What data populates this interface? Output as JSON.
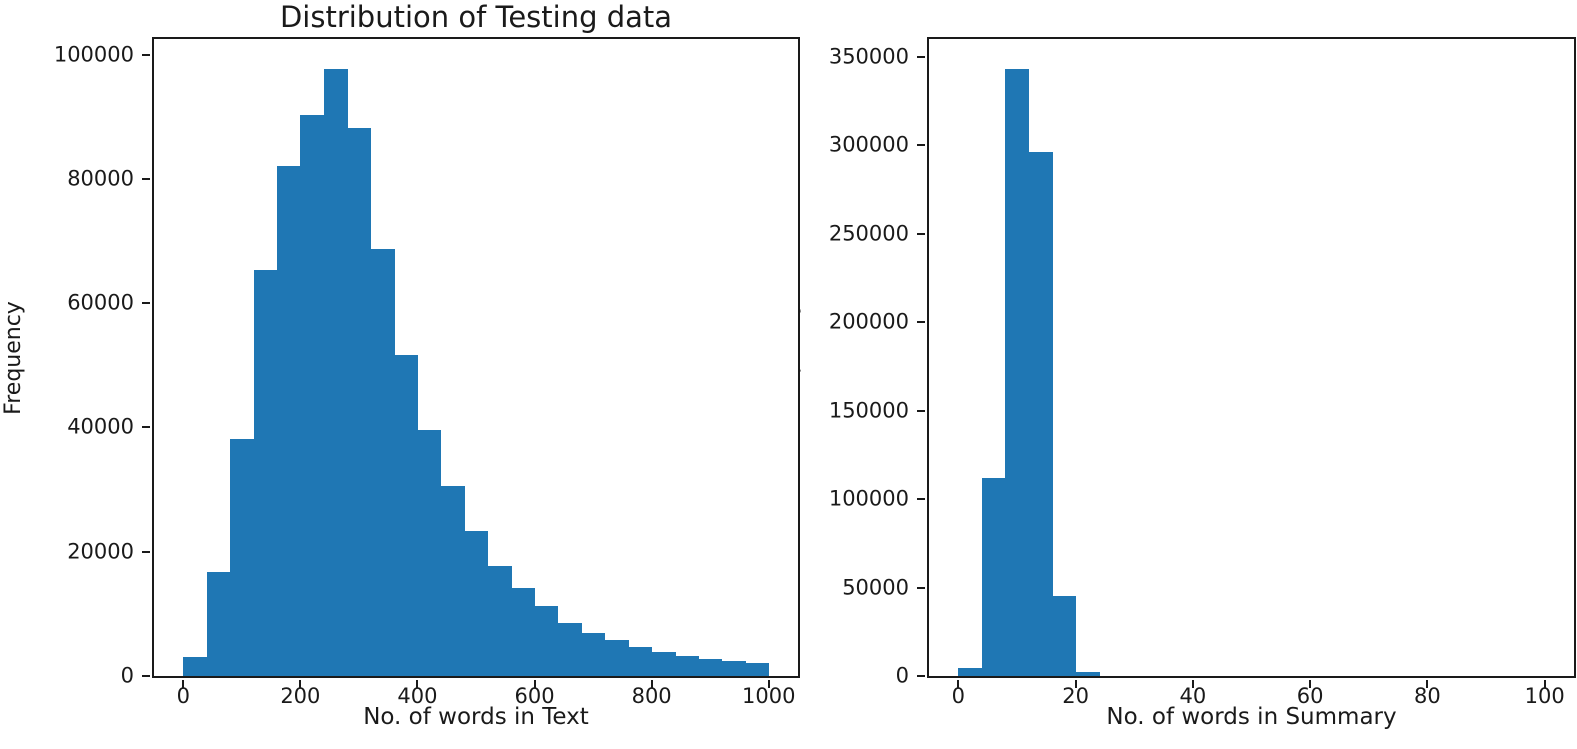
{
  "figure": {
    "background": "#ffffff",
    "bar_color": "#1f77b4",
    "axis_color": "#1a1a1a",
    "text_color": "#1a1a1a"
  },
  "chart_data": [
    {
      "type": "bar",
      "subtype": "histogram",
      "title": "Distribution of Testing data",
      "xlabel": "No. of words in Text",
      "ylabel": "Frequency",
      "bins": {
        "start": 0,
        "width": 40,
        "count": 25
      },
      "values": [
        3000,
        16700,
        38200,
        65300,
        82000,
        90300,
        97600,
        88200,
        68700,
        51700,
        39600,
        30500,
        23400,
        17700,
        14100,
        11300,
        8500,
        7000,
        5800,
        4600,
        3900,
        3300,
        2700,
        2400,
        2100
      ],
      "xlim": [
        -50,
        1050
      ],
      "ylim": [
        0,
        102500
      ],
      "xticks": [
        0,
        200,
        400,
        600,
        800,
        1000
      ],
      "yticks": [
        0,
        20000,
        40000,
        60000,
        80000,
        100000
      ],
      "grid": false,
      "legend": null
    },
    {
      "type": "bar",
      "subtype": "histogram",
      "title": "",
      "xlabel": "No. of words in Summary",
      "ylabel": "Frequency",
      "bins": {
        "start": 0,
        "width": 4,
        "count": 25
      },
      "values": [
        4300,
        112000,
        343000,
        296500,
        45500,
        2500,
        0,
        0,
        0,
        0,
        0,
        0,
        0,
        0,
        0,
        0,
        0,
        0,
        0,
        0,
        0,
        0,
        0,
        0,
        0
      ],
      "xlim": [
        -5,
        105
      ],
      "ylim": [
        0,
        360200
      ],
      "xticks": [
        0,
        20,
        40,
        60,
        80,
        100
      ],
      "yticks": [
        0,
        50000,
        100000,
        150000,
        200000,
        250000,
        300000,
        350000
      ],
      "grid": false,
      "legend": null
    }
  ]
}
